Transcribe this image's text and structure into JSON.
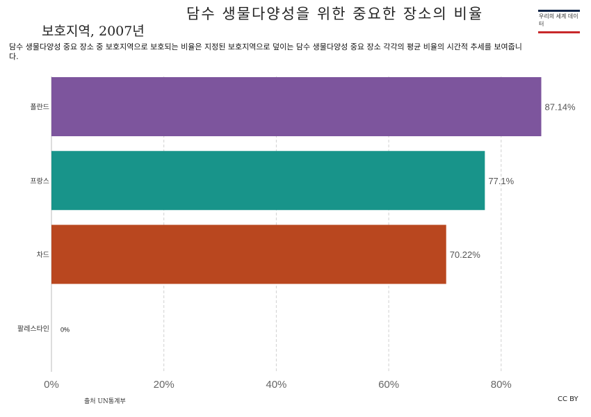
{
  "chart_data": {
    "type": "bar",
    "orientation": "horizontal",
    "title_line1": "담수 생물다양성을 위한 중요한 장소의 비율",
    "title_line2": "보호지역, 2007년",
    "subtitle": "담수 생물다양성 중요 장소 중 보호지역으로 보호되는 비율은 지정된 보호지역으로 덮이는 담수 생물다양성 중요 장소 각각의 평균 비율의 시간적 추세를 보여줍니다.",
    "categories": [
      "폴란드",
      "프랑스",
      "차드",
      "팔레스타인"
    ],
    "values": [
      87.14,
      77.1,
      70.22,
      0
    ],
    "value_labels": [
      "87.14%",
      "77.1%",
      "70.22%",
      "0%"
    ],
    "colors": [
      "#7d559d",
      "#18948a",
      "#b9471f",
      "#999999"
    ],
    "x_ticks": [
      0,
      20,
      40,
      60,
      80
    ],
    "x_tick_labels": [
      "0%",
      "20%",
      "40%",
      "60%",
      "80%"
    ],
    "xlim": [
      0,
      90
    ],
    "grid": "vertical dashed",
    "xlabel": "",
    "ylabel": ""
  },
  "logo_text": "우리의 세계 데이터",
  "footer": {
    "source": "출처 UN통계부",
    "license": "CC BY"
  }
}
